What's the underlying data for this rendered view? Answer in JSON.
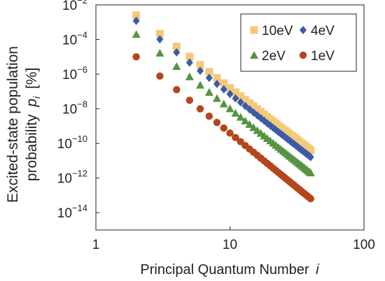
{
  "chart_data": {
    "type": "scatter",
    "title": "",
    "xlabel": "Principal Quantum Number",
    "xlabel_var": "i",
    "ylabel_line1": "Excited-state population",
    "ylabel_line2": "probability",
    "ylabel_var": "p",
    "ylabel_sub": "i",
    "ylabel_unit": "[%]",
    "x_scale": "log",
    "y_scale": "log",
    "xlim": [
      1,
      100
    ],
    "ylim": [
      1e-15,
      0.01
    ],
    "x_ticks": [
      {
        "value": 1,
        "label": "1"
      },
      {
        "value": 10,
        "label": "10"
      },
      {
        "value": 100,
        "label": "100"
      }
    ],
    "y_ticks": [
      {
        "value": 0.01,
        "base": "10",
        "exp": "−2"
      },
      {
        "value": 0.0001,
        "base": "10",
        "exp": "−4"
      },
      {
        "value": 1e-06,
        "base": "10",
        "exp": "−6"
      },
      {
        "value": 1e-08,
        "base": "10",
        "exp": "−8"
      },
      {
        "value": 1e-10,
        "base": "10",
        "exp": "−10"
      },
      {
        "value": 1e-12,
        "base": "10",
        "exp": "−12"
      },
      {
        "value": 1e-14,
        "base": "10",
        "exp": "−14"
      }
    ],
    "grid": false,
    "legend_position": "top-right",
    "x_range": {
      "start": 2,
      "end": 40
    },
    "series": [
      {
        "name": "10eV",
        "marker": "square",
        "color": "#F5C87A",
        "p2": 0.0025,
        "exponent": 6.0
      },
      {
        "name": "4eV",
        "marker": "diamond",
        "color": "#3B5BA9",
        "p2": 0.0012,
        "exponent": 6.05
      },
      {
        "name": "2eV",
        "marker": "triangle",
        "color": "#559440",
        "p2": 0.0002,
        "exponent": 6.15
      },
      {
        "name": "1eV",
        "marker": "circle",
        "color": "#B5461A",
        "p2": 1e-05,
        "exponent": 6.3
      }
    ]
  }
}
